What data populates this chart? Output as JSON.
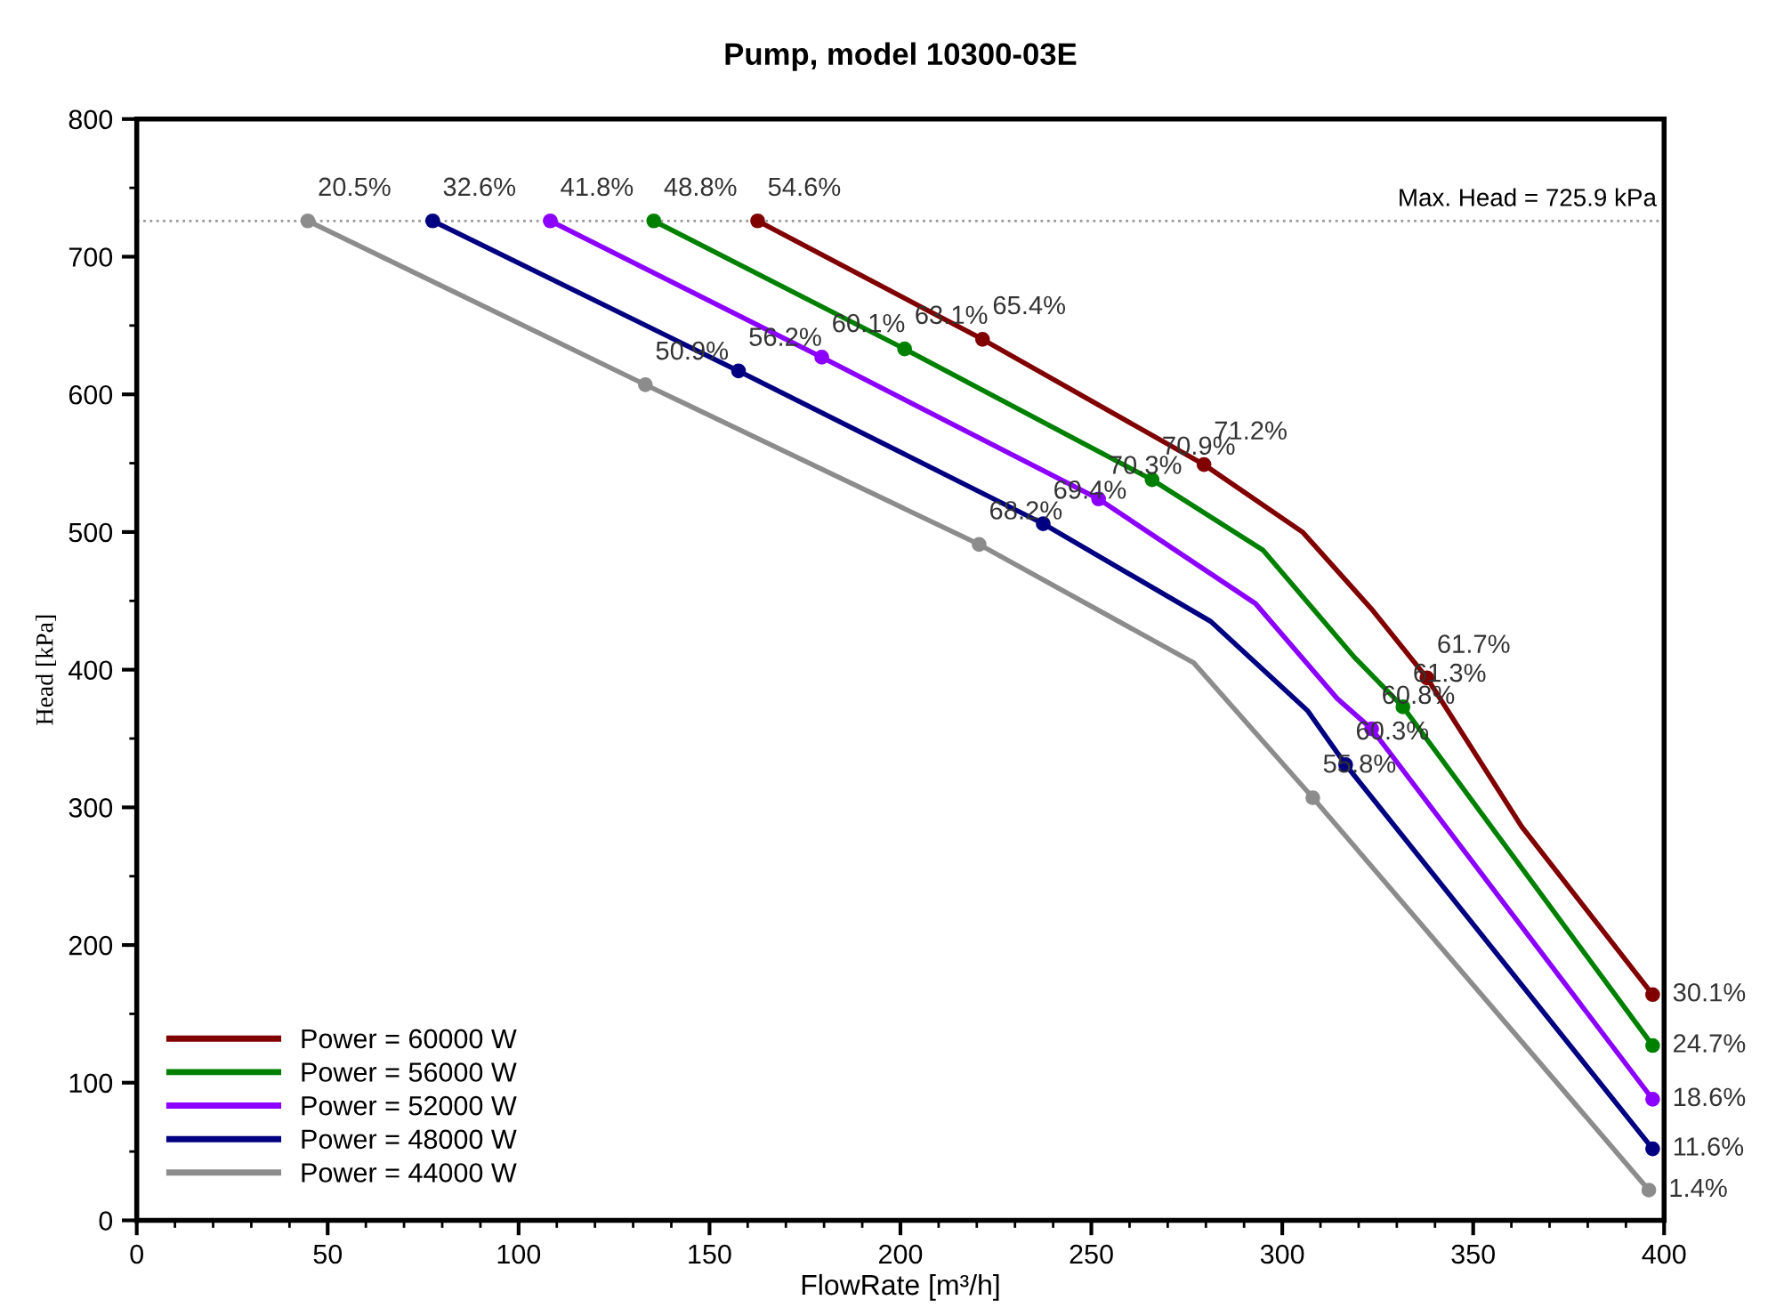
{
  "chart_data": {
    "type": "line",
    "title": "Pump, model 10300-03E",
    "xlabel": "FlowRate [m³/h]",
    "ylabel": "Head [kPa]",
    "xlim": [
      0,
      400
    ],
    "ylim": [
      0,
      800
    ],
    "xticks": [
      0,
      {
        "value": 10,
        "label": null
      },
      {
        "value": 20,
        "label": null
      },
      {
        "value": 30,
        "label": null
      },
      {
        "value": 40,
        "label": null
      },
      50,
      {
        "value": 60,
        "label": null
      },
      {
        "value": 70,
        "label": null
      },
      {
        "value": 80,
        "label": null
      },
      {
        "value": 90,
        "label": null
      },
      100,
      {
        "value": 110,
        "label": null
      },
      {
        "value": 120,
        "label": null
      },
      {
        "value": 130,
        "label": null
      },
      {
        "value": 140,
        "label": null
      },
      150,
      {
        "value": 160,
        "label": null
      },
      {
        "value": 170,
        "label": null
      },
      {
        "value": 180,
        "label": null
      },
      {
        "value": 190,
        "label": null
      },
      200,
      {
        "value": 210,
        "label": null
      },
      {
        "value": 220,
        "label": null
      },
      {
        "value": 230,
        "label": null
      },
      {
        "value": 240,
        "label": null
      },
      250,
      {
        "value": 260,
        "label": null
      },
      {
        "value": 270,
        "label": null
      },
      {
        "value": 280,
        "label": null
      },
      {
        "value": 290,
        "label": null
      },
      300,
      {
        "value": 310,
        "label": null
      },
      {
        "value": 320,
        "label": null
      },
      {
        "value": 330,
        "label": null
      },
      {
        "value": 340,
        "label": null
      },
      350,
      {
        "value": 360,
        "label": null
      },
      {
        "value": 370,
        "label": null
      },
      {
        "value": 380,
        "label": null
      },
      {
        "value": 390,
        "label": null
      },
      400
    ],
    "yticks": [
      0,
      {
        "value": 50,
        "label": null
      },
      100,
      {
        "value": 150,
        "label": null
      },
      200,
      {
        "value": 250,
        "label": null
      },
      300,
      {
        "value": 350,
        "label": null
      },
      400,
      {
        "value": 450,
        "label": null
      },
      500,
      {
        "value": 550,
        "label": null
      },
      600,
      {
        "value": 650,
        "label": null
      },
      700,
      {
        "value": 750,
        "label": null
      },
      800
    ],
    "grid": false,
    "legend": "bottom left",
    "marker": "circle",
    "line_style": "solid",
    "series": [
      {
        "name": "Power = 60000 W",
        "color": "#800000",
        "x": [
          162.6,
          221.5,
          279.5,
          305.3,
          323.4,
          337.9,
          362.7,
          397
        ],
        "values": [
          726,
          640,
          549,
          500,
          444,
          394,
          286,
          164
        ]
      },
      {
        "name": "Power = 56000 W",
        "color": "#008000",
        "x": [
          135.4,
          201.1,
          265.9,
          294.9,
          318.9,
          331.6,
          397
        ],
        "values": [
          726,
          633,
          538,
          487,
          409,
          373,
          127
        ]
      },
      {
        "name": "Power = 52000 W",
        "color": "#8b00ff",
        "x": [
          108.3,
          179.4,
          251.9,
          293,
          314.4,
          323.4,
          397
        ],
        "values": [
          726,
          627,
          524,
          448,
          379,
          357,
          88
        ]
      },
      {
        "name": "Power = 48000 W",
        "color": "#000080",
        "x": [
          77.5,
          157.6,
          237.4,
          281.3,
          306.7,
          316.6,
          397
        ],
        "values": [
          726,
          617,
          506,
          435,
          370,
          331,
          52
        ]
      },
      {
        "name": "Power = 44000 W",
        "color": "#8c8c8c",
        "x": [
          44.8,
          133.2,
          220.6,
          276.8,
          308,
          396
        ],
        "values": [
          726,
          607,
          491,
          405,
          307,
          22
        ]
      }
    ],
    "ref_lines": [
      {
        "axis": "y",
        "value": 725.9,
        "label": "Max. Head = 725.9 kPa",
        "color": "#999999",
        "line_style": "dotted"
      }
    ],
    "annotations": [
      {
        "text": "54.6%",
        "x": 162.6,
        "y": 726
      },
      {
        "text": "65.4%",
        "x": 221.5,
        "y": 640
      },
      {
        "text": "71.2%",
        "x": 279.5,
        "y": 549
      },
      {
        "text": "61.7%",
        "x": 337.9,
        "y": 394
      },
      {
        "text": "30.1%",
        "x": 397,
        "y": 164
      },
      {
        "text": "48.8%",
        "x": 135.4,
        "y": 726
      },
      {
        "text": "63.1%",
        "x": 201.1,
        "y": 633
      },
      {
        "text": "70.9%",
        "x": 265.9,
        "y": 538
      },
      {
        "text": "61.3%",
        "x": 331.6,
        "y": 373
      },
      {
        "text": "24.7%",
        "x": 397,
        "y": 127
      },
      {
        "text": "41.8%",
        "x": 108.3,
        "y": 726
      },
      {
        "text": "60.1%",
        "x": 179.4,
        "y": 627
      },
      {
        "text": "70.3%",
        "x": 251.9,
        "y": 524
      },
      {
        "text": "60.8%",
        "x": 323.4,
        "y": 357
      },
      {
        "text": "18.6%",
        "x": 397,
        "y": 88
      },
      {
        "text": "32.6%",
        "x": 77.5,
        "y": 726
      },
      {
        "text": "56.2%",
        "x": 157.6,
        "y": 617
      },
      {
        "text": "69.4%",
        "x": 237.4,
        "y": 506
      },
      {
        "text": "60.3%",
        "x": 316.6,
        "y": 331
      },
      {
        "text": "11.6%",
        "x": 397,
        "y": 52
      },
      {
        "text": "20.5%",
        "x": 44.8,
        "y": 726
      },
      {
        "text": "50.9%",
        "x": 133.2,
        "y": 607
      },
      {
        "text": "68.2%",
        "x": 220.6,
        "y": 491
      },
      {
        "text": "55.8%",
        "x": 308,
        "y": 307
      },
      {
        "text": "1.4%",
        "x": 396,
        "y": 22
      }
    ]
  }
}
